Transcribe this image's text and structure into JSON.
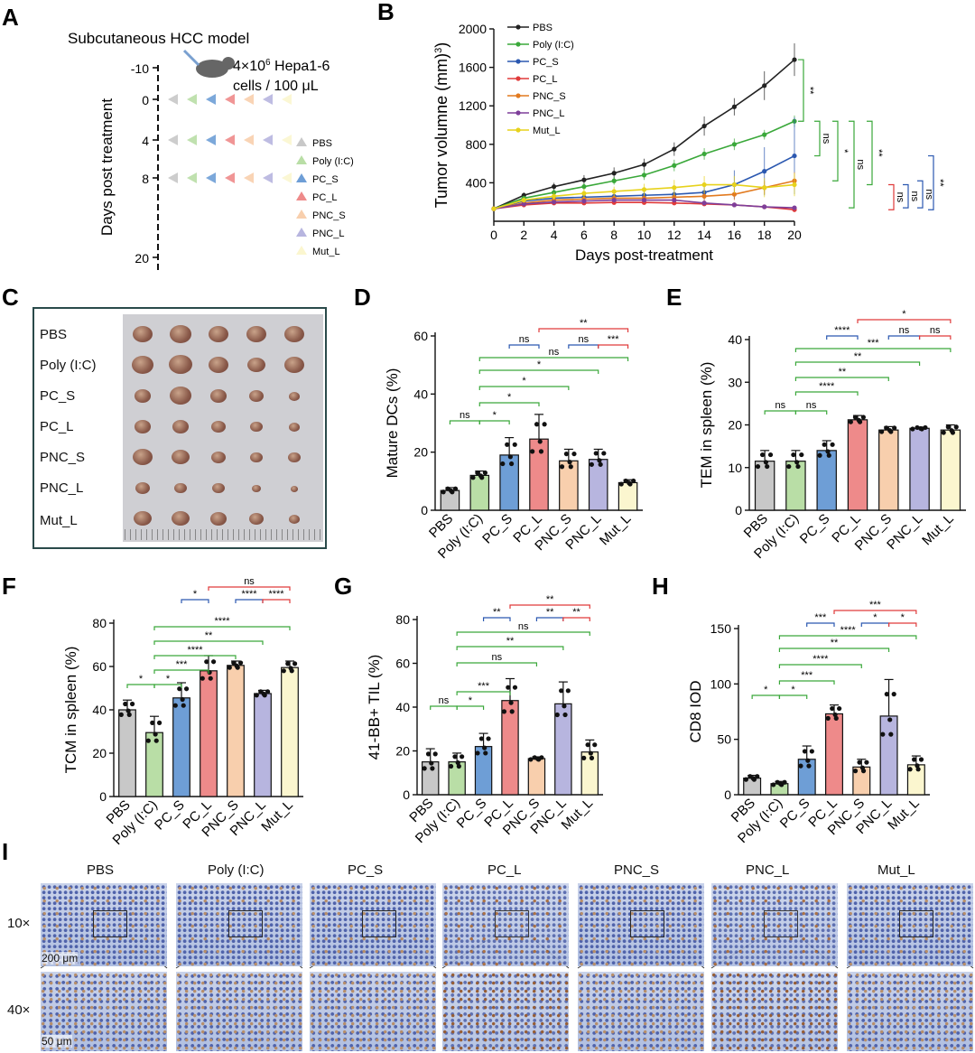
{
  "panels": {
    "A": {
      "label": "A",
      "title": "Subcutaneous HCC model",
      "injection": [
        "4×10",
        "6",
        " Hepa1-6",
        "cells / 100 μL"
      ],
      "ylabel": "Days post treatment",
      "days": [
        "-10",
        "0",
        "4",
        "8",
        "20"
      ],
      "legend": [
        "PBS",
        "Poly (I:C)",
        "PC_S",
        "PC_L",
        "PNC_S",
        "PNC_L",
        "Mut_L"
      ]
    },
    "B": {
      "label": "B"
    },
    "C": {
      "label": "C",
      "rows": [
        "PBS",
        "Poly (I:C)",
        "PC_S",
        "PC_L",
        "PNC_S",
        "PNC_L",
        "Mut_L"
      ]
    },
    "D": {
      "label": "D"
    },
    "E": {
      "label": "E"
    },
    "F": {
      "label": "F"
    },
    "G": {
      "label": "G"
    },
    "H": {
      "label": "H"
    },
    "I": {
      "label": "I",
      "groups": [
        "PBS",
        "Poly (I:C)",
        "PC_S",
        "PC_L",
        "PNC_S",
        "PNC_L",
        "Mut_L"
      ],
      "mag": [
        "10×",
        "40×"
      ],
      "scale": [
        "200 μm",
        "50 μm"
      ]
    }
  },
  "colors": {
    "PBS": "#c8c8c8",
    "Poly (I:C)": "#b9dea6",
    "PC_S": "#6e9ed6",
    "PC_L": "#ee8a8a",
    "PNC_S": "#f8cfad",
    "PNC_L": "#b7b5df",
    "Mut_L": "#fbf6cf"
  },
  "chart_data": [
    {
      "type": "line",
      "panel": "B",
      "xlabel": "Days post-treatment",
      "ylabel": "Tumor volumne (mm3)",
      "x": [
        0,
        2,
        4,
        6,
        8,
        10,
        12,
        14,
        16,
        18,
        20
      ],
      "xlim": [
        0,
        20
      ],
      "ylim": [
        0,
        2000
      ],
      "xticks": [
        "0",
        "2",
        "4",
        "6",
        "8",
        "10",
        "12",
        "14",
        "16",
        "18",
        "20"
      ],
      "yticks": [
        "400",
        "800",
        "1200",
        "1600",
        "2000"
      ],
      "series": [
        {
          "name": "PBS",
          "color": "#222222",
          "values": [
            130,
            270,
            360,
            430,
            500,
            590,
            750,
            990,
            1190,
            1410,
            1680
          ],
          "err": [
            0,
            30,
            40,
            50,
            60,
            60,
            70,
            100,
            90,
            150,
            170
          ]
        },
        {
          "name": "Poly (I:C)",
          "color": "#3aa83a",
          "values": [
            130,
            240,
            300,
            360,
            420,
            480,
            580,
            700,
            800,
            900,
            1040
          ],
          "err": [
            0,
            25,
            30,
            35,
            40,
            50,
            60,
            60,
            60,
            50,
            60
          ]
        },
        {
          "name": "PC_S",
          "color": "#2b58b0",
          "values": [
            130,
            210,
            240,
            250,
            260,
            270,
            280,
            300,
            380,
            520,
            680
          ],
          "err": [
            0,
            30,
            30,
            40,
            40,
            50,
            60,
            80,
            150,
            250,
            400
          ]
        },
        {
          "name": "PC_L",
          "color": "#e03a3a",
          "values": [
            130,
            170,
            190,
            190,
            195,
            195,
            190,
            180,
            170,
            150,
            120
          ],
          "err": [
            0,
            20,
            20,
            20,
            20,
            20,
            20,
            20,
            20,
            20,
            20
          ]
        },
        {
          "name": "PNC_S",
          "color": "#e27a1f",
          "values": [
            130,
            190,
            220,
            230,
            240,
            240,
            250,
            260,
            280,
            350,
            420
          ],
          "err": [
            0,
            30,
            30,
            40,
            40,
            50,
            50,
            60,
            60,
            70,
            90
          ]
        },
        {
          "name": "PNC_L",
          "color": "#7e3f9a",
          "values": [
            130,
            180,
            200,
            210,
            220,
            220,
            220,
            190,
            170,
            150,
            140
          ],
          "err": [
            0,
            20,
            20,
            20,
            20,
            20,
            20,
            20,
            20,
            20,
            20
          ]
        },
        {
          "name": "Mut_L",
          "color": "#e7d21c",
          "values": [
            130,
            220,
            260,
            290,
            310,
            330,
            350,
            380,
            380,
            350,
            380
          ],
          "err": [
            0,
            30,
            40,
            50,
            50,
            60,
            80,
            90,
            90,
            100,
            120
          ]
        }
      ],
      "significance": [
        "**",
        "ns",
        "*",
        "ns",
        "**",
        "ns",
        "ns",
        "ns",
        "**"
      ]
    },
    {
      "type": "bar",
      "panel": "D",
      "ylabel": "Mature DCs (%)",
      "categories": [
        "PBS",
        "Poly (I:C)",
        "PC_S",
        "PC_L",
        "PNC_S",
        "PNC_L",
        "Mut_L"
      ],
      "values": [
        6.8,
        12,
        19,
        24.5,
        17,
        17.5,
        9.5
      ],
      "err": [
        1,
        1.5,
        6,
        8.5,
        4,
        3.5,
        1
      ],
      "ylim": [
        0,
        60
      ],
      "yticks": [
        "0",
        "20",
        "40",
        "60"
      ],
      "significance": [
        "ns",
        "*",
        "*",
        "*",
        "*",
        "ns",
        "ns",
        "ns",
        "***",
        "**"
      ]
    },
    {
      "type": "bar",
      "panel": "E",
      "ylabel": "TEM in spleen (%)",
      "categories": [
        "PBS",
        "Poly (I:C)",
        "PC_S",
        "PC_L",
        "PNC_S",
        "PNC_L",
        "Mut_L"
      ],
      "values": [
        11.5,
        11.5,
        14,
        21.2,
        18.8,
        19.2,
        18.8
      ],
      "err": [
        2.5,
        2.5,
        2.3,
        1,
        0.8,
        0.3,
        1.2
      ],
      "ylim": [
        0,
        40
      ],
      "yticks": [
        "0",
        "10",
        "20",
        "30",
        "40"
      ],
      "significance": [
        "ns",
        "ns",
        "****",
        "**",
        "**",
        "***",
        "****",
        "ns",
        "ns",
        "*"
      ]
    },
    {
      "type": "bar",
      "panel": "F",
      "ylabel": "TCM in spleen (%)",
      "categories": [
        "PBS",
        "Poly (I:C)",
        "PC_S",
        "PC_L",
        "PNC_S",
        "PNC_L",
        "Mut_L"
      ],
      "values": [
        40,
        29.5,
        45.5,
        58,
        60.5,
        47.5,
        59.5
      ],
      "err": [
        4.5,
        7.5,
        7,
        7,
        2,
        1.5,
        3
      ],
      "ylim": [
        0,
        80
      ],
      "yticks": [
        "0",
        "20",
        "40",
        "60",
        "80"
      ],
      "significance": [
        "*",
        "*",
        "***",
        "****",
        "**",
        "****",
        "*",
        "****",
        "****",
        "ns"
      ]
    },
    {
      "type": "bar",
      "panel": "G",
      "ylabel": "41-BB+ TIL (%)",
      "categories": [
        "PBS",
        "Poly (I:C)",
        "PC_S",
        "PC_L",
        "PNC_S",
        "PNC_L",
        "Mut_L"
      ],
      "values": [
        15,
        15,
        22,
        43,
        16.5,
        41.5,
        19.5
      ],
      "err": [
        6,
        4,
        6,
        10,
        0.8,
        10,
        5.5
      ],
      "ylim": [
        0,
        80
      ],
      "yticks": [
        "0",
        "20",
        "40",
        "60",
        "80"
      ],
      "significance": [
        "ns",
        "*",
        "***",
        "ns",
        "**",
        "ns",
        "**",
        "**",
        "**",
        "**"
      ]
    },
    {
      "type": "bar",
      "panel": "H",
      "ylabel": "CD8 IOD",
      "categories": [
        "PBS",
        "Poly (I:C)",
        "PC_S",
        "PC_L",
        "PNC_S",
        "PNC_L",
        "Mut_L"
      ],
      "values": [
        15,
        10,
        32,
        73,
        25,
        71,
        27
      ],
      "err": [
        2.5,
        2,
        12,
        8,
        7,
        33,
        8
      ],
      "ylim": [
        0,
        150
      ],
      "yticks": [
        "0",
        "50",
        "100",
        "150"
      ],
      "significance": [
        "*",
        "*",
        "***",
        "****",
        "**",
        "****",
        "***",
        "*",
        "*",
        "***"
      ]
    }
  ]
}
